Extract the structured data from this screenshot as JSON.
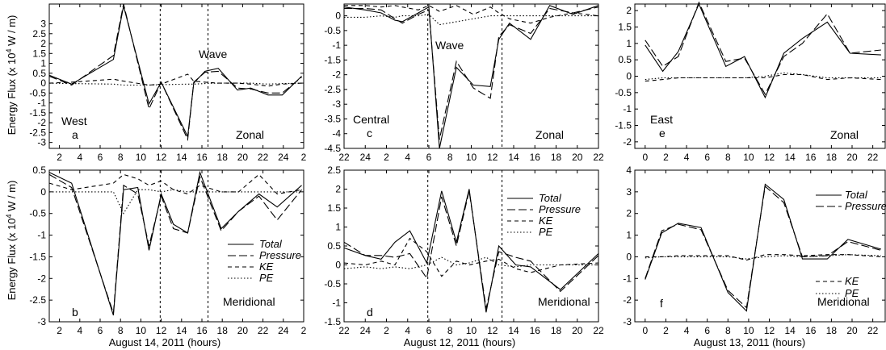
{
  "figure": {
    "ylabel": "Energy Flux (x 10",
    "ylabel_exp": "4",
    "ylabel_tail": " W / m)",
    "xlabels": [
      "August 14, 2011 (hours)",
      "August 12, 2011 (hours)",
      "August 13, 2011 (hours)"
    ]
  },
  "chart_data": [
    {
      "type": "line",
      "panel": "a",
      "labels": {
        "site": "West",
        "letter": "a",
        "component": "Zonal",
        "wave": "Wave"
      },
      "x_ticks": [
        "2",
        "4",
        "6",
        "8",
        "10",
        "12",
        "14",
        "16",
        "18",
        "20",
        "22",
        "24",
        "2"
      ],
      "ylim": [
        -3.3,
        4.0
      ],
      "y_ticks": [
        -3,
        -2.5,
        -2,
        -1.5,
        -1,
        -0.5,
        0,
        0.5,
        1,
        1.5,
        2,
        2.5,
        3
      ],
      "wave_lines": [
        11.9,
        16.6
      ],
      "series": [
        {
          "name": "Total",
          "style": "solid",
          "x": [
            1,
            3.2,
            7.3,
            8.3,
            10.8,
            12,
            14.6,
            15.2,
            16.3,
            17.6,
            19.5,
            20.8,
            22.5,
            23.9,
            25.8
          ],
          "y": [
            0.4,
            -0.05,
            1.2,
            3.9,
            -1.05,
            0.05,
            -2.7,
            0.0,
            0.6,
            0.75,
            -0.35,
            -0.25,
            -0.6,
            -0.6,
            0.35
          ]
        },
        {
          "name": "Pressure",
          "style": "longdash",
          "x": [
            1,
            3.2,
            7.3,
            8.3,
            10.8,
            12,
            14.6,
            15.2,
            16.3,
            17.6,
            19.5,
            20.8,
            22.5,
            23.9,
            25.8
          ],
          "y": [
            0.35,
            -0.1,
            1.4,
            4.0,
            -1.3,
            0.05,
            -2.85,
            0.05,
            0.55,
            0.6,
            -0.25,
            -0.3,
            -0.5,
            -0.5,
            0.3
          ]
        },
        {
          "name": "KE",
          "style": "dash",
          "x": [
            1,
            3.2,
            7.3,
            8.3,
            10.8,
            12,
            14.6,
            15.2,
            16.3,
            17.6,
            19.5,
            20.8,
            22.5,
            23.9,
            25.8
          ],
          "y": [
            0.0,
            0.05,
            0.2,
            0.1,
            -0.1,
            -0.05,
            0.45,
            0.1,
            0.05,
            0.0,
            0.0,
            -0.05,
            -0.15,
            -0.05,
            0.0
          ]
        },
        {
          "name": "PE",
          "style": "dot",
          "x": [
            1,
            3.2,
            7.3,
            8.3,
            10.8,
            12,
            14.6,
            15.2,
            16.3,
            17.6,
            19.5,
            20.8,
            22.5,
            23.9,
            25.8
          ],
          "y": [
            0.0,
            -0.02,
            -0.05,
            -0.1,
            -0.1,
            -0.08,
            -0.05,
            -0.05,
            -0.02,
            0.0,
            0.0,
            0.0,
            -0.05,
            -0.02,
            0.0
          ]
        }
      ]
    },
    {
      "type": "line",
      "panel": "b",
      "labels": {
        "letter": "b",
        "component": "Meridional"
      },
      "x_ticks": [
        "2",
        "4",
        "6",
        "8",
        "10",
        "12",
        "14",
        "16",
        "18",
        "20",
        "22",
        "24",
        "2"
      ],
      "ylim": [
        -3.0,
        0.5
      ],
      "y_ticks": [
        -3,
        -2.5,
        -2,
        -1.5,
        -1,
        -0.5,
        0,
        0.5
      ],
      "wave_lines": [
        11.9,
        16.6
      ],
      "legend": [
        "Total",
        "Pressure",
        "KE",
        "PE"
      ],
      "series": [
        {
          "name": "Total",
          "style": "solid",
          "x": [
            1,
            3.2,
            7.3,
            8.3,
            9.7,
            10.8,
            12,
            13.2,
            14.6,
            15.8,
            17.9,
            19.6,
            21.6,
            23.4,
            25.8
          ],
          "y": [
            0.45,
            0.2,
            -2.85,
            0.05,
            0.1,
            -1.35,
            -0.05,
            -0.75,
            -0.95,
            0.45,
            -0.85,
            -0.45,
            -0.05,
            -0.35,
            0.15
          ]
        },
        {
          "name": "Pressure",
          "style": "longdash",
          "x": [
            1,
            3.2,
            7.3,
            8.3,
            9.7,
            10.8,
            12,
            13.2,
            14.6,
            15.8,
            17.9,
            19.6,
            21.6,
            23.4,
            25.8
          ],
          "y": [
            0.4,
            0.1,
            -2.8,
            0.15,
            -0.05,
            -1.25,
            -0.1,
            -0.85,
            -0.95,
            0.35,
            -0.9,
            -0.45,
            -0.1,
            -0.65,
            0.05
          ]
        },
        {
          "name": "KE",
          "style": "dash",
          "x": [
            1,
            3.2,
            7.3,
            8.3,
            9.7,
            10.8,
            12,
            13.2,
            14.6,
            15.8,
            17.9,
            19.6,
            21.6,
            23.4,
            25.8
          ],
          "y": [
            0.2,
            0.05,
            0.2,
            0.4,
            0.3,
            0.15,
            0.25,
            0.05,
            -0.05,
            0.15,
            0.0,
            0.0,
            0.4,
            -0.05,
            0.05
          ]
        },
        {
          "name": "PE",
          "style": "dot",
          "x": [
            1,
            3.2,
            7.3,
            8.3,
            9.7,
            10.8,
            12,
            13.2,
            14.6,
            15.8,
            17.9,
            19.6,
            21.6,
            23.4,
            25.8
          ],
          "y": [
            0.0,
            0.0,
            0.0,
            -0.5,
            0.05,
            0.05,
            0.0,
            0.05,
            0.0,
            0.0,
            0.0,
            0.0,
            0.0,
            0.0,
            0.0
          ]
        }
      ]
    },
    {
      "type": "line",
      "panel": "c",
      "labels": {
        "site": "Central",
        "letter": "c",
        "component": "Zonal",
        "wave": "Wave"
      },
      "x_ticks": [
        "22",
        "24",
        "2",
        "4",
        "6",
        "8",
        "10",
        "12",
        "14",
        "16",
        "18",
        "20",
        "22"
      ],
      "ylim": [
        -4.5,
        0.4
      ],
      "y_ticks": [
        -4.5,
        -4,
        -3.5,
        -3,
        -2.5,
        -2,
        -1.5,
        -1,
        -0.5,
        0
      ],
      "wave_lines": [
        5.9,
        12.9
      ],
      "series": [
        {
          "name": "Total",
          "style": "solid",
          "x": [
            -2,
            0,
            1.5,
            2.8,
            3.5,
            5,
            6,
            7,
            8.6,
            10.2,
            11.8,
            12.6,
            13.6,
            15.6,
            17.4,
            19.6,
            22
          ],
          "y": [
            0.3,
            0.2,
            0.1,
            -0.15,
            -0.2,
            0.1,
            0.3,
            -4.5,
            -1.75,
            -2.35,
            -2.4,
            -0.8,
            -0.25,
            -0.8,
            0.35,
            0.05,
            0.35
          ]
        },
        {
          "name": "Pressure",
          "style": "longdash",
          "x": [
            -2,
            0,
            1.5,
            2.8,
            3.5,
            5,
            6,
            7,
            8.6,
            10.2,
            11.8,
            12.6,
            13.6,
            15.6,
            17.4,
            19.6,
            22
          ],
          "y": [
            0.25,
            0.25,
            0.2,
            -0.1,
            -0.25,
            0.05,
            0.2,
            -4.2,
            -1.55,
            -2.45,
            -2.8,
            -0.7,
            -0.3,
            -0.6,
            0.25,
            0.1,
            0.3
          ]
        },
        {
          "name": "KE",
          "style": "dash",
          "x": [
            -2,
            0,
            1.5,
            2.8,
            3.5,
            5,
            6,
            7,
            8.6,
            10.2,
            11.8,
            12.6,
            13.6,
            15.6,
            17.4,
            19.6,
            22
          ],
          "y": [
            0.35,
            0.35,
            0.3,
            0.35,
            0.3,
            0.2,
            0.35,
            0.15,
            0.35,
            0.05,
            0.3,
            0.1,
            -0.1,
            -0.25,
            -0.05,
            0.1,
            0.0
          ]
        },
        {
          "name": "PE",
          "style": "dot",
          "x": [
            -2,
            0,
            1.5,
            2.8,
            3.5,
            5,
            6,
            7,
            8.6,
            10.2,
            11.8,
            12.6,
            13.6,
            15.6,
            17.4,
            19.6,
            22
          ],
          "y": [
            -0.05,
            -0.05,
            0.0,
            -0.05,
            0.0,
            0.0,
            0.05,
            -0.3,
            -0.2,
            -0.1,
            0.0,
            0.0,
            0.0,
            0.0,
            0.0,
            0.0,
            0.0
          ]
        }
      ]
    },
    {
      "type": "line",
      "panel": "d",
      "labels": {
        "letter": "d",
        "component": "Meridional"
      },
      "x_ticks": [
        "22",
        "24",
        "2",
        "4",
        "6",
        "8",
        "10",
        "12",
        "14",
        "16",
        "18",
        "20",
        "22"
      ],
      "ylim": [
        -1.5,
        2.5
      ],
      "y_ticks": [
        -1.5,
        -1,
        -0.5,
        0,
        0.5,
        1,
        1.5,
        2,
        2.5
      ],
      "wave_lines": [
        5.9,
        12.9
      ],
      "legend": [
        "Total",
        "Pressure",
        "KE",
        "PE"
      ],
      "series": [
        {
          "name": "Total",
          "style": "solid",
          "x": [
            -2,
            0,
            1.5,
            2.8,
            4.2,
            5.8,
            7.2,
            8.6,
            9.8,
            11.4,
            12.6,
            14.2,
            15.6,
            18.4,
            22
          ],
          "y": [
            0.45,
            0.25,
            0.15,
            0.6,
            0.9,
            0.05,
            1.95,
            0.6,
            2.0,
            -1.25,
            0.5,
            0.0,
            -0.05,
            -0.65,
            0.3
          ]
        },
        {
          "name": "Pressure",
          "style": "longdash",
          "x": [
            -2,
            0,
            1.5,
            2.8,
            4.2,
            5.8,
            7.2,
            8.6,
            9.8,
            11.4,
            12.6,
            14.2,
            15.6,
            18.4,
            22
          ],
          "y": [
            0.6,
            0.25,
            0.25,
            0.2,
            0.3,
            -0.35,
            1.8,
            0.5,
            1.95,
            -1.15,
            0.35,
            0.2,
            0.1,
            -0.7,
            0.25
          ]
        },
        {
          "name": "KE",
          "style": "dash",
          "x": [
            -2,
            0,
            1.5,
            2.8,
            4.2,
            5.8,
            7.2,
            8.6,
            9.8,
            11.4,
            12.6,
            14.2,
            15.6,
            18.4,
            22
          ],
          "y": [
            0.05,
            0.0,
            0.1,
            0.0,
            0.7,
            0.35,
            -0.3,
            0.1,
            0.0,
            0.1,
            0.15,
            -0.1,
            -0.2,
            0.0,
            0.05
          ]
        },
        {
          "name": "PE",
          "style": "dot",
          "x": [
            -2,
            0,
            1.5,
            2.8,
            4.2,
            5.8,
            7.2,
            8.6,
            9.8,
            11.4,
            12.6,
            14.2,
            15.6,
            18.4,
            22
          ],
          "y": [
            -0.1,
            -0.05,
            -0.1,
            -0.05,
            -0.1,
            0.0,
            0.2,
            0.0,
            0.05,
            0.2,
            0.0,
            -0.05,
            0.0,
            0.0,
            0.0
          ]
        }
      ]
    },
    {
      "type": "line",
      "panel": "e",
      "labels": {
        "site": "East",
        "letter": "e",
        "component": "Zonal"
      },
      "x_ticks": [
        "0",
        "2",
        "4",
        "6",
        "8",
        "10",
        "12",
        "14",
        "16",
        "18",
        "20",
        "22"
      ],
      "ylim": [
        -2.2,
        2.2
      ],
      "y_ticks": [
        -2,
        -1.5,
        -1,
        -0.5,
        0,
        0.5,
        1,
        1.5,
        2
      ],
      "series": [
        {
          "name": "Total",
          "style": "solid",
          "x": [
            0,
            1.7,
            3.2,
            5.2,
            7.8,
            9.6,
            11.6,
            13.4,
            15.2,
            17.6,
            19.8,
            22.8
          ],
          "y": [
            0.95,
            0.15,
            0.75,
            2.2,
            0.3,
            0.6,
            -0.65,
            0.7,
            1.15,
            1.65,
            0.7,
            0.65
          ]
        },
        {
          "name": "Pressure",
          "style": "longdash",
          "x": [
            0,
            1.7,
            3.2,
            5.2,
            7.8,
            9.6,
            11.6,
            13.4,
            15.2,
            17.6,
            19.8,
            22.8
          ],
          "y": [
            1.1,
            0.3,
            0.6,
            2.25,
            0.45,
            0.55,
            -0.55,
            0.6,
            1.0,
            1.9,
            0.7,
            0.8
          ]
        },
        {
          "name": "KE",
          "style": "dash",
          "x": [
            0,
            1.7,
            3.2,
            5.2,
            7.8,
            9.6,
            11.6,
            13.4,
            15.2,
            17.6,
            19.8,
            22.8
          ],
          "y": [
            -0.15,
            -0.1,
            -0.05,
            -0.05,
            -0.05,
            -0.05,
            -0.05,
            0.05,
            0.05,
            -0.1,
            -0.05,
            -0.1
          ]
        },
        {
          "name": "PE",
          "style": "dot",
          "x": [
            0,
            1.7,
            3.2,
            5.2,
            7.8,
            9.6,
            11.6,
            13.4,
            15.2,
            17.6,
            19.8,
            22.8
          ],
          "y": [
            -0.1,
            -0.05,
            -0.05,
            -0.05,
            -0.05,
            -0.05,
            0.0,
            0.1,
            0.05,
            -0.05,
            -0.05,
            -0.05
          ]
        }
      ]
    },
    {
      "type": "line",
      "panel": "f",
      "labels": {
        "letter": "f",
        "component": "Meridional"
      },
      "x_ticks": [
        "0",
        "2",
        "4",
        "6",
        "8",
        "10",
        "12",
        "14",
        "16",
        "18",
        "20",
        "22"
      ],
      "ylim": [
        -3,
        4
      ],
      "y_ticks": [
        -3,
        -2,
        -1,
        0,
        1,
        2,
        3,
        4
      ],
      "legend_top": [
        "Total",
        "Pressure"
      ],
      "legend_bottom": [
        "KE",
        "PE"
      ],
      "series": [
        {
          "name": "Total",
          "style": "solid",
          "x": [
            0,
            1.6,
            3.2,
            5.4,
            8.0,
            9.8,
            11.6,
            13.4,
            15.2,
            17.6,
            19.6,
            22.8
          ],
          "y": [
            -1.05,
            1.1,
            1.55,
            1.35,
            -1.65,
            -2.5,
            3.35,
            2.65,
            -0.1,
            -0.1,
            0.8,
            0.35
          ]
        },
        {
          "name": "Pressure",
          "style": "longdash",
          "x": [
            0,
            1.6,
            3.2,
            5.4,
            8.0,
            9.8,
            11.6,
            13.4,
            15.2,
            17.6,
            19.6,
            22.8
          ],
          "y": [
            -1.0,
            1.2,
            1.5,
            1.25,
            -1.55,
            -2.35,
            3.25,
            2.5,
            0.0,
            0.05,
            0.7,
            0.3
          ]
        },
        {
          "name": "KE",
          "style": "dash",
          "x": [
            0,
            1.6,
            3.2,
            5.4,
            8.0,
            9.8,
            11.6,
            13.4,
            15.2,
            17.6,
            19.6,
            22.8
          ],
          "y": [
            0.0,
            0.0,
            0.05,
            0.05,
            0.05,
            -0.15,
            0.1,
            0.1,
            0.05,
            0.1,
            0.1,
            0.0
          ]
        },
        {
          "name": "PE",
          "style": "dot",
          "x": [
            0,
            1.6,
            3.2,
            5.4,
            8.0,
            9.8,
            11.6,
            13.4,
            15.2,
            17.6,
            19.6,
            22.8
          ],
          "y": [
            -0.05,
            0.0,
            0.0,
            0.0,
            0.0,
            -0.1,
            0.0,
            0.05,
            0.0,
            0.05,
            0.1,
            0.05
          ]
        }
      ]
    }
  ]
}
